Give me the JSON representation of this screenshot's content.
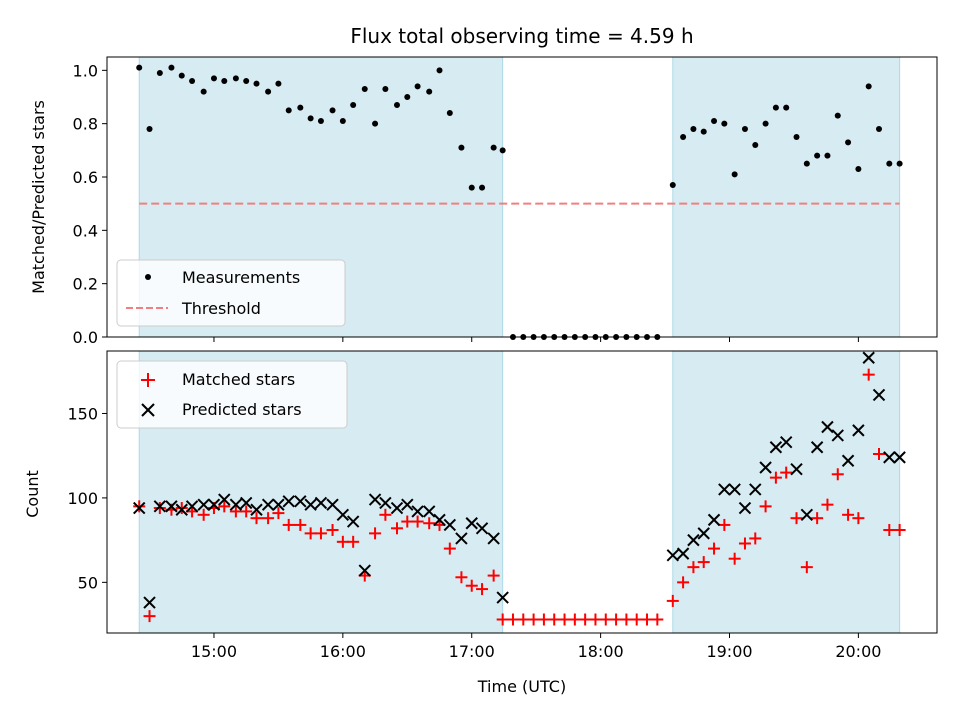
{
  "chart_data": [
    {
      "type": "scatter",
      "title": "Flux total observing time = 4.59 h",
      "xlabel": "",
      "ylabel": "Matched/Predicted stars",
      "xlim_hours": [
        14.17,
        20.61
      ],
      "ylim": [
        0,
        1.05
      ],
      "yticks": [
        0.0,
        0.2,
        0.4,
        0.6,
        0.8,
        1.0
      ],
      "ytick_labels": [
        "0.0",
        "0.2",
        "0.4",
        "0.6",
        "0.8",
        "1.0"
      ],
      "xticks_hours": [
        15,
        16,
        17,
        18,
        19,
        20
      ],
      "shaded_spans_hours": [
        [
          14.42,
          17.24
        ],
        [
          18.56,
          20.32
        ]
      ],
      "shade_color": "#add8e6",
      "threshold": {
        "name": "Threshold",
        "value": 0.5,
        "color": "#f08080",
        "style": "dashed"
      },
      "legend": {
        "placement": "lower-left",
        "entries": [
          "Measurements",
          "Threshold"
        ]
      },
      "series": [
        {
          "name": "Measurements",
          "marker": "dot",
          "color": "#000000",
          "x": [
            14.42,
            14.5,
            14.58,
            14.67,
            14.75,
            14.83,
            14.92,
            15.0,
            15.08,
            15.17,
            15.25,
            15.33,
            15.42,
            15.5,
            15.58,
            15.67,
            15.75,
            15.83,
            15.92,
            16.0,
            16.08,
            16.17,
            16.25,
            16.33,
            16.42,
            16.5,
            16.58,
            16.67,
            16.75,
            16.83,
            16.92,
            17.0,
            17.08,
            17.17,
            17.24,
            17.32,
            17.4,
            17.48,
            17.56,
            17.64,
            17.72,
            17.8,
            17.88,
            17.96,
            18.04,
            18.12,
            18.2,
            18.28,
            18.36,
            18.44,
            18.56,
            18.64,
            18.72,
            18.8,
            18.88,
            18.96,
            19.04,
            19.12,
            19.2,
            19.28,
            19.36,
            19.44,
            19.52,
            19.6,
            19.68,
            19.76,
            19.84,
            19.92,
            20.0,
            20.08,
            20.16,
            20.24,
            20.32
          ],
          "y": [
            1.01,
            0.78,
            0.99,
            1.01,
            0.98,
            0.96,
            0.92,
            0.97,
            0.96,
            0.97,
            0.96,
            0.95,
            0.92,
            0.95,
            0.85,
            0.86,
            0.82,
            0.81,
            0.85,
            0.81,
            0.87,
            0.93,
            0.8,
            0.93,
            0.87,
            0.9,
            0.94,
            0.92,
            1.0,
            0.84,
            0.71,
            0.56,
            0.56,
            0.71,
            0.7,
            0,
            0,
            0,
            0,
            0,
            0,
            0,
            0,
            0,
            0,
            0,
            0,
            0,
            0,
            0,
            0.57,
            0.75,
            0.78,
            0.77,
            0.81,
            0.8,
            0.61,
            0.78,
            0.72,
            0.8,
            0.86,
            0.86,
            0.75,
            0.65,
            0.68,
            0.68,
            0.83,
            0.73,
            0.63,
            0.94,
            0.78,
            0.65,
            0.65
          ]
        }
      ]
    },
    {
      "type": "scatter",
      "title": "",
      "xlabel": "Time (UTC)",
      "ylabel": "Count",
      "xlim_hours": [
        14.17,
        20.61
      ],
      "ylim": [
        20,
        187
      ],
      "yticks": [
        50,
        100,
        150
      ],
      "ytick_labels": [
        "50",
        "100",
        "150"
      ],
      "xticks_hours": [
        15,
        16,
        17,
        18,
        19,
        20
      ],
      "xtick_labels": [
        "15:00",
        "16:00",
        "17:00",
        "18:00",
        "19:00",
        "20:00"
      ],
      "shaded_spans_hours": [
        [
          14.42,
          17.24
        ],
        [
          18.56,
          20.32
        ]
      ],
      "shade_color": "#add8e6",
      "legend": {
        "placement": "upper-left",
        "entries": [
          "Matched stars",
          "Predicted stars"
        ]
      },
      "series": [
        {
          "name": "Matched stars",
          "marker": "plus",
          "color": "#ff0000",
          "x": [
            14.42,
            14.5,
            14.58,
            14.67,
            14.75,
            14.83,
            14.92,
            15.0,
            15.08,
            15.17,
            15.25,
            15.33,
            15.42,
            15.5,
            15.58,
            15.67,
            15.75,
            15.83,
            15.92,
            16.0,
            16.08,
            16.17,
            16.25,
            16.33,
            16.42,
            16.5,
            16.58,
            16.67,
            16.75,
            16.83,
            16.92,
            17.0,
            17.08,
            17.17,
            17.24,
            17.32,
            17.4,
            17.48,
            17.56,
            17.64,
            17.72,
            17.8,
            17.88,
            17.96,
            18.04,
            18.12,
            18.2,
            18.28,
            18.36,
            18.44,
            18.56,
            18.64,
            18.72,
            18.8,
            18.88,
            18.96,
            19.04,
            19.12,
            19.2,
            19.28,
            19.36,
            19.44,
            19.52,
            19.6,
            19.68,
            19.76,
            19.84,
            19.92,
            20.0,
            20.08,
            20.16,
            20.24,
            20.32
          ],
          "y": [
            95,
            30,
            94,
            93,
            94,
            92,
            90,
            94,
            95,
            92,
            92,
            88,
            88,
            91,
            84,
            84,
            79,
            79,
            81,
            74,
            74,
            54,
            79,
            90,
            82,
            86,
            86,
            85,
            84,
            70,
            53,
            48,
            46,
            54,
            28,
            28,
            28,
            28,
            28,
            28,
            28,
            28,
            28,
            28,
            28,
            28,
            28,
            28,
            28,
            28,
            39,
            50,
            59,
            62,
            70,
            84,
            64,
            73,
            76,
            95,
            112,
            115,
            88,
            59,
            88,
            96,
            114,
            90,
            88,
            173,
            126,
            81,
            81
          ]
        },
        {
          "name": "Predicted stars",
          "marker": "x",
          "color": "#000000",
          "x": [
            14.42,
            14.5,
            14.58,
            14.67,
            14.75,
            14.83,
            14.92,
            15.0,
            15.08,
            15.17,
            15.25,
            15.33,
            15.42,
            15.5,
            15.58,
            15.67,
            15.75,
            15.83,
            15.92,
            16.0,
            16.08,
            16.17,
            16.25,
            16.33,
            16.42,
            16.5,
            16.58,
            16.67,
            16.75,
            16.83,
            16.92,
            17.0,
            17.08,
            17.17,
            17.24,
            18.56,
            18.64,
            18.72,
            18.8,
            18.88,
            18.96,
            19.04,
            19.12,
            19.2,
            19.28,
            19.36,
            19.44,
            19.52,
            19.6,
            19.68,
            19.76,
            19.84,
            19.92,
            20.0,
            20.08,
            20.16,
            20.24,
            20.32
          ],
          "y": [
            94,
            38,
            95,
            95,
            93,
            95,
            96,
            96,
            99,
            96,
            97,
            93,
            96,
            96,
            98,
            98,
            96,
            97,
            96,
            90,
            86,
            57,
            99,
            97,
            94,
            96,
            92,
            92,
            87,
            84,
            76,
            85,
            82,
            76,
            41,
            66,
            67,
            75,
            79,
            87,
            105,
            105,
            94,
            105,
            118,
            130,
            133,
            117,
            90,
            130,
            142,
            137,
            122,
            140,
            183,
            161,
            124,
            124
          ]
        }
      ]
    }
  ]
}
